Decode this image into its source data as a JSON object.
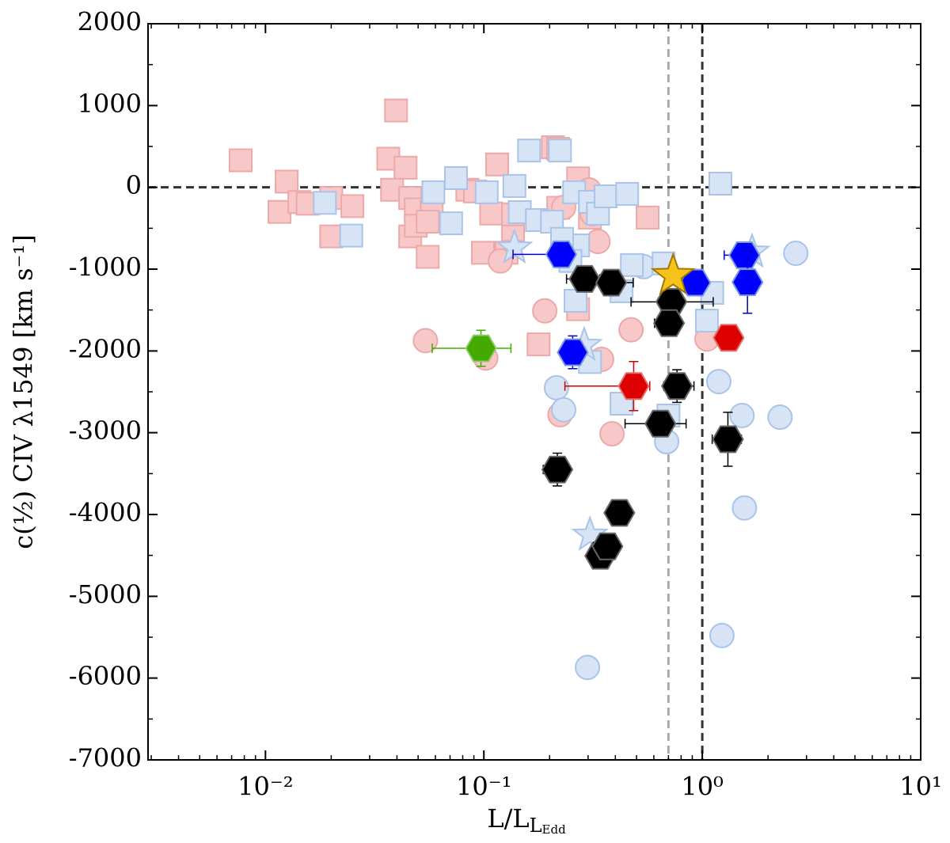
{
  "chart_data": {
    "type": "scatter",
    "xlabel": "L/L",
    "xlabel_sub": "L",
    "xlabel_subsub": "Edd",
    "ylabel": "c(½) CIV λ1549 [km s⁻¹]",
    "xscale": "log",
    "grid": false,
    "xlim": [
      0.0029,
      10
    ],
    "ylim": [
      -7000,
      2000
    ],
    "xticks": [
      {
        "value": 0.01,
        "label": "10⁻²"
      },
      {
        "value": 0.1,
        "label": "10⁻¹"
      },
      {
        "value": 1,
        "label": "10⁰"
      },
      {
        "value": 10,
        "label": "10¹"
      }
    ],
    "yticks": [
      2000,
      1000,
      0,
      -1000,
      -2000,
      -3000,
      -4000,
      -5000,
      -6000,
      -7000
    ],
    "hlines": [
      {
        "value": 0,
        "color": "#333333"
      }
    ],
    "vlines": [
      {
        "value": 0.7,
        "color": "#aaaaaa"
      },
      {
        "value": 1,
        "color": "#333333"
      }
    ],
    "series": [
      {
        "marker": "square",
        "color": "#f8c8c8",
        "edge": "#eba9a9",
        "x": [
          0.0077,
          0.0125,
          0.0116,
          0.0143,
          0.0156,
          0.02,
          0.025,
          0.02,
          0.0396,
          0.0365,
          0.0438,
          0.038,
          0.046,
          0.046,
          0.0553,
          0.0488,
          0.0488,
          0.0577,
          0.0553,
          0.084,
          0.091,
          0.115,
          0.108,
          0.099,
          0.127,
          0.136,
          0.178,
          0.207,
          0.219,
          0.27,
          0.306,
          0.27,
          0.562,
          0.136,
          0.219
        ],
        "y": [
          330,
          70,
          -300,
          -180,
          -200,
          -130,
          -230,
          -600,
          940,
          350,
          240,
          -30,
          -600,
          -130,
          -850,
          -270,
          -470,
          -300,
          -420,
          -30,
          -50,
          280,
          -320,
          -800,
          -800,
          -520,
          -1920,
          490,
          -250,
          110,
          -370,
          -1490,
          -370,
          -330,
          470
        ]
      },
      {
        "marker": "circle",
        "color": "#f8c8c8",
        "edge": "#eba9a9",
        "x": [
          0.054,
          0.102,
          0.119,
          0.19,
          0.223,
          0.333,
          0.472,
          0.386,
          0.346,
          0.313,
          0.232,
          0.303,
          1.05
        ],
        "y": [
          -1874,
          -2087,
          -900,
          -1510,
          -2780,
          -662,
          -1742,
          -3013,
          -2103,
          -322,
          -245,
          -32,
          -1855
        ]
      },
      {
        "marker": "circle",
        "color": "#d6e4f5",
        "edge": "#a9c4e8",
        "x": [
          0.215,
          0.232,
          0.687,
          0.539,
          1.19,
          1.52,
          2.27,
          2.68,
          1.56,
          1.23,
          0.298
        ],
        "y": [
          -2450,
          -2720,
          -3110,
          -970,
          -2375,
          -2790,
          -2810,
          -806,
          -3920,
          -5480,
          -5870
        ]
      },
      {
        "marker": "square",
        "color": "#d6e4f5",
        "edge": "#a9c4e8",
        "x": [
          0.0187,
          0.0247,
          0.0587,
          0.0745,
          0.0708,
          0.103,
          0.138,
          0.161,
          0.146,
          0.175,
          0.223,
          0.205,
          0.259,
          0.27,
          0.306,
          0.333,
          0.361,
          0.453,
          0.228,
          0.263,
          0.306,
          0.427,
          0.476,
          0.427,
          0.665,
          1.21,
          1.11,
          1.05,
          0.7,
          0.249
        ],
        "y": [
          -190,
          -590,
          -60,
          113,
          -440,
          -60,
          17,
          450,
          -303,
          -400,
          450,
          -420,
          -60,
          -710,
          -177,
          -322,
          -110,
          -80,
          -630,
          -1387,
          -2135,
          -2645,
          -950,
          -1270,
          -930,
          45,
          -1290,
          -1630,
          -2790,
          -900
        ]
      },
      {
        "marker": "star",
        "color": "#d6e4f5",
        "edge": "#a9c4e8",
        "x": [
          0.138,
          0.306,
          1.69,
          0.288
        ],
        "y": [
          -740,
          -4250,
          -790,
          -1930
        ]
      },
      {
        "marker": "hexagon",
        "color": "#0000ff",
        "edge": "#7a96dc",
        "errcolor": "#0000cc",
        "x": [
          0.226,
          0.255,
          0.928,
          1.56,
          1.61
        ],
        "y": [
          -820,
          -2017,
          -1165,
          -830,
          -1160
        ],
        "xerr": [
          [
            0.09,
            0.03
          ],
          [
            0.03,
            0.03
          ],
          [
            0.1,
            0.1
          ],
          [
            0.3,
            0.2
          ],
          [
            0.2,
            0.2
          ]
        ],
        "yerr": [
          150,
          200,
          100,
          100,
          380
        ]
      },
      {
        "marker": "hexagon",
        "color": "#000000",
        "edge": "#666666",
        "errcolor": "#000000",
        "x": [
          0.289,
          0.383,
          0.722,
          0.704,
          0.766,
          0.643,
          1.31,
          0.217,
          0.417,
          0.341,
          0.368
        ],
        "y": [
          -1120,
          -1165,
          -1400,
          -1660,
          -2430,
          -2890,
          -3080,
          -3450,
          -3980,
          -4505,
          -4390
        ],
        "xerr": [
          [
            0.05,
            0.05
          ],
          [
            0.1,
            0.1
          ],
          [
            0.25,
            0.4
          ],
          [
            0.1,
            0.1
          ],
          [
            0.1,
            0.15
          ],
          [
            0.2,
            0.2
          ],
          [
            0.2,
            0.2
          ],
          [
            0.03,
            0.03
          ],
          [
            0.05,
            0.05
          ],
          [
            0.04,
            0.04
          ],
          [
            0.05,
            0.05
          ]
        ],
        "yerr": [
          150,
          150,
          150,
          150,
          200,
          150,
          330,
          200,
          150,
          150,
          150
        ]
      },
      {
        "marker": "hexagon",
        "color": "#dd0000",
        "edge": "#e07070",
        "errcolor": "#cc0000",
        "x": [
          0.485,
          1.32
        ],
        "y": [
          -2430,
          -1840
        ],
        "xerr": [
          [
            0.25,
            0.09
          ],
          [
            0.1,
            0.15
          ]
        ],
        "yerr": [
          300,
          80
        ]
      },
      {
        "marker": "hexagon",
        "color": "#44aa00",
        "edge": "#8ccc66",
        "errcolor": "#44aa00",
        "x": [
          0.097
        ],
        "y": [
          -1968
        ],
        "xerr": [
          [
            0.039,
            0.036
          ]
        ],
        "yerr": [
          220
        ]
      },
      {
        "marker": "bigstar",
        "color": "#f7c21a",
        "edge": "#a07800",
        "x": [
          0.735
        ],
        "y": [
          -1080
        ]
      }
    ]
  }
}
